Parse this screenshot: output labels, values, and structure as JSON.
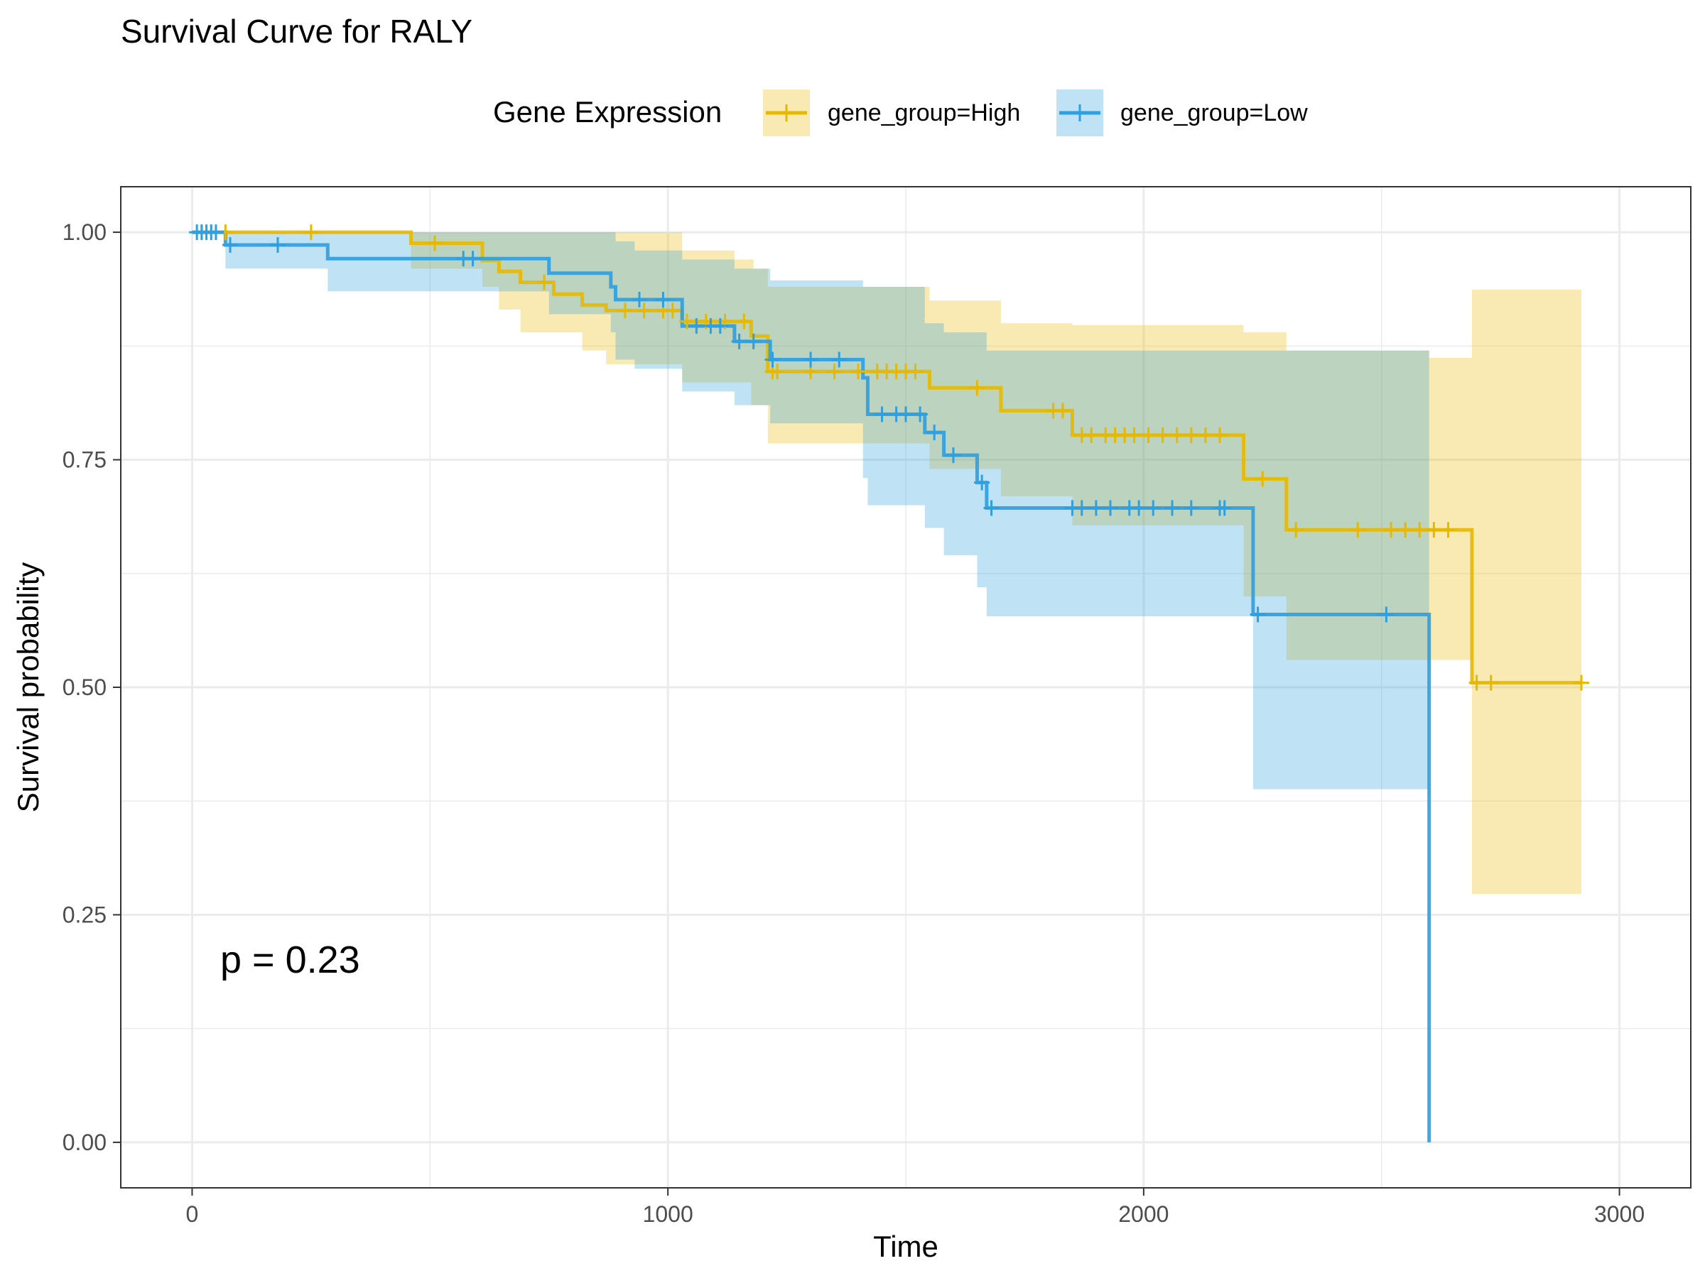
{
  "chart_data": {
    "type": "line",
    "title": "Survival Curve for RALY",
    "xlabel": "Time",
    "ylabel": "Survival probability",
    "xlim": [
      -150,
      3150
    ],
    "ylim": [
      -0.05,
      1.05
    ],
    "x_ticks": [
      0,
      1000,
      2000,
      3000
    ],
    "x_tick_labels": [
      "0",
      "1000",
      "2000",
      "3000"
    ],
    "y_ticks": [
      0,
      0.25,
      0.5,
      0.75,
      1.0
    ],
    "y_tick_labels": [
      "0.00",
      "0.25",
      "0.50",
      "0.75",
      "1.00"
    ],
    "grid": true,
    "legend": {
      "title": "Gene Expression",
      "position": "top"
    },
    "annotation": "p = 0.23",
    "series": [
      {
        "name": "gene_group=High",
        "color": "#E7B800",
        "steps": [
          [
            0,
            1.0
          ],
          [
            460,
            0.988
          ],
          [
            610,
            0.969
          ],
          [
            645,
            0.957
          ],
          [
            690,
            0.945
          ],
          [
            760,
            0.932
          ],
          [
            820,
            0.92
          ],
          [
            870,
            0.914
          ],
          [
            1030,
            0.902
          ],
          [
            1175,
            0.886
          ],
          [
            1210,
            0.847
          ],
          [
            1550,
            0.829
          ],
          [
            1700,
            0.804
          ],
          [
            1850,
            0.777
          ],
          [
            2210,
            0.729
          ],
          [
            2300,
            0.673
          ],
          [
            2690,
            0.505
          ],
          [
            2920,
            0.505
          ]
        ],
        "ci_upper": [
          [
            0,
            1.0
          ],
          [
            610,
            1.0
          ],
          [
            820,
            1.0
          ],
          [
            1030,
            0.98
          ],
          [
            1140,
            0.97
          ],
          [
            1180,
            0.96
          ],
          [
            1210,
            0.94
          ],
          [
            1550,
            0.925
          ],
          [
            1700,
            0.9
          ],
          [
            1850,
            0.898
          ],
          [
            2210,
            0.89
          ],
          [
            2300,
            0.87
          ],
          [
            2600,
            0.862
          ],
          [
            2690,
            0.937
          ],
          [
            2920,
            0.937
          ]
        ],
        "ci_lower": [
          [
            0,
            1.0
          ],
          [
            460,
            0.96
          ],
          [
            610,
            0.94
          ],
          [
            645,
            0.915
          ],
          [
            690,
            0.89
          ],
          [
            820,
            0.87
          ],
          [
            870,
            0.855
          ],
          [
            1030,
            0.835
          ],
          [
            1175,
            0.81
          ],
          [
            1210,
            0.768
          ],
          [
            1400,
            0.768
          ],
          [
            1550,
            0.74
          ],
          [
            1700,
            0.71
          ],
          [
            1850,
            0.678
          ],
          [
            2210,
            0.6
          ],
          [
            2300,
            0.53
          ],
          [
            2690,
            0.273
          ],
          [
            2920,
            0.273
          ]
        ],
        "censor_times": [
          20,
          40,
          70,
          250,
          510,
          740,
          910,
          950,
          990,
          1010,
          1040,
          1080,
          1120,
          1160,
          1220,
          1230,
          1300,
          1350,
          1400,
          1440,
          1460,
          1480,
          1500,
          1520,
          1650,
          1810,
          1830,
          1870,
          1890,
          1920,
          1940,
          1960,
          1980,
          2010,
          2040,
          2070,
          2100,
          2130,
          2160,
          2250,
          2320,
          2450,
          2520,
          2550,
          2580,
          2610,
          2640,
          2700,
          2730,
          2920
        ]
      },
      {
        "name": "gene_group=Low",
        "color": "#2E9FDF",
        "steps": [
          [
            0,
            1.0
          ],
          [
            70,
            0.986
          ],
          [
            285,
            0.971
          ],
          [
            750,
            0.955
          ],
          [
            880,
            0.94
          ],
          [
            890,
            0.926
          ],
          [
            1030,
            0.91
          ],
          [
            1030,
            0.897
          ],
          [
            1140,
            0.88
          ],
          [
            1215,
            0.86
          ],
          [
            1410,
            0.84
          ],
          [
            1420,
            0.8
          ],
          [
            1540,
            0.78
          ],
          [
            1580,
            0.755
          ],
          [
            1650,
            0.725
          ],
          [
            1670,
            0.697
          ],
          [
            2230,
            0.58
          ],
          [
            2600,
            0.0
          ]
        ],
        "ci_upper": [
          [
            0,
            1.0
          ],
          [
            750,
            1.0
          ],
          [
            890,
            0.99
          ],
          [
            930,
            0.98
          ],
          [
            1030,
            0.97
          ],
          [
            1140,
            0.96
          ],
          [
            1215,
            0.947
          ],
          [
            1410,
            0.94
          ],
          [
            1540,
            0.9
          ],
          [
            1580,
            0.89
          ],
          [
            1670,
            0.87
          ],
          [
            2230,
            0.87
          ],
          [
            2600,
            0.87
          ]
        ],
        "ci_lower": [
          [
            0,
            1.0
          ],
          [
            70,
            0.96
          ],
          [
            285,
            0.935
          ],
          [
            750,
            0.91
          ],
          [
            880,
            0.89
          ],
          [
            890,
            0.86
          ],
          [
            930,
            0.85
          ],
          [
            1030,
            0.825
          ],
          [
            1140,
            0.81
          ],
          [
            1215,
            0.79
          ],
          [
            1410,
            0.73
          ],
          [
            1420,
            0.7
          ],
          [
            1540,
            0.675
          ],
          [
            1580,
            0.645
          ],
          [
            1650,
            0.61
          ],
          [
            1670,
            0.578
          ],
          [
            2230,
            0.388
          ],
          [
            2600,
            0.388
          ]
        ],
        "censor_times": [
          10,
          20,
          30,
          40,
          50,
          80,
          180,
          570,
          590,
          940,
          990,
          1060,
          1090,
          1110,
          1150,
          1180,
          1220,
          1300,
          1360,
          1450,
          1480,
          1500,
          1530,
          1560,
          1600,
          1660,
          1680,
          1850,
          1870,
          1900,
          1930,
          1970,
          1990,
          2020,
          2060,
          2100,
          2160,
          2170,
          2240,
          2510
        ]
      }
    ]
  }
}
